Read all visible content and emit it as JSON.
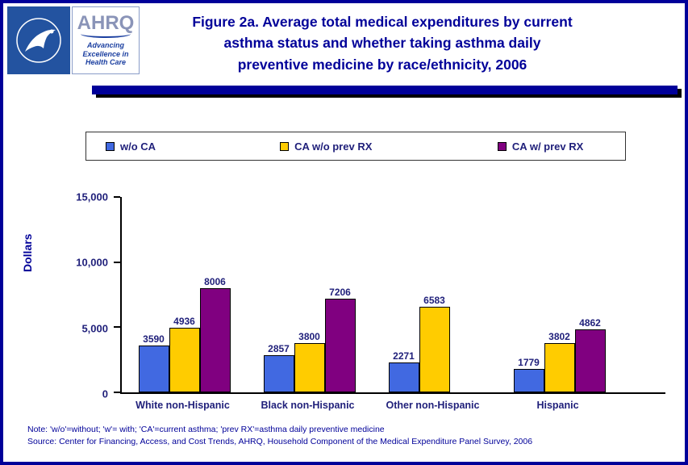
{
  "header": {
    "title_lines": [
      "Figure 2a. Average total medical expenditures by current",
      "asthma status and whether taking asthma daily",
      "preventive medicine by race/ethnicity, 2006"
    ],
    "ahrq_logo": {
      "acronym": "AHRQ",
      "tagline": "Advancing Excellence in Health Care"
    }
  },
  "chart_data": {
    "type": "bar",
    "title": "Figure 2a. Average total medical expenditures by current asthma status and whether taking asthma daily preventive medicine by race/ethnicity, 2006",
    "xlabel": "",
    "ylabel": "Dollars",
    "ylim": [
      0,
      15000
    ],
    "yticks": [
      0,
      5000,
      10000,
      15000
    ],
    "ytick_labels": [
      "0",
      "5,000",
      "10,000",
      "15,000"
    ],
    "categories": [
      "White non-Hispanic",
      "Black non-Hispanic",
      "Other non-Hispanic",
      "Hispanic"
    ],
    "series": [
      {
        "name": "w/o CA",
        "color": "#4169E1",
        "values": [
          3590,
          2857,
          2271,
          1779
        ]
      },
      {
        "name": "CA w/o prev RX",
        "color": "#FFCC00",
        "values": [
          4936,
          3800,
          6583,
          3802
        ]
      },
      {
        "name": "CA w/ prev RX",
        "color": "#800080",
        "values": [
          8006,
          7206,
          null,
          4862
        ]
      }
    ],
    "grid": false,
    "legend_position": "top"
  },
  "footer": {
    "note": "Note: 'w/o'=without; 'w'= with; 'CA'=current asthma; 'prev RX'=asthma daily preventive medicine",
    "source": "Source: Center for Financing, Access, and Cost Trends, AHRQ, Household Component of the Medical Expenditure Panel Survey, 2006"
  },
  "colors": {
    "navy": "#000099",
    "chart_text": "#1f1f7a",
    "ahrq_blue": "#1b3fa0",
    "hhs_blue": "#2353a0"
  }
}
